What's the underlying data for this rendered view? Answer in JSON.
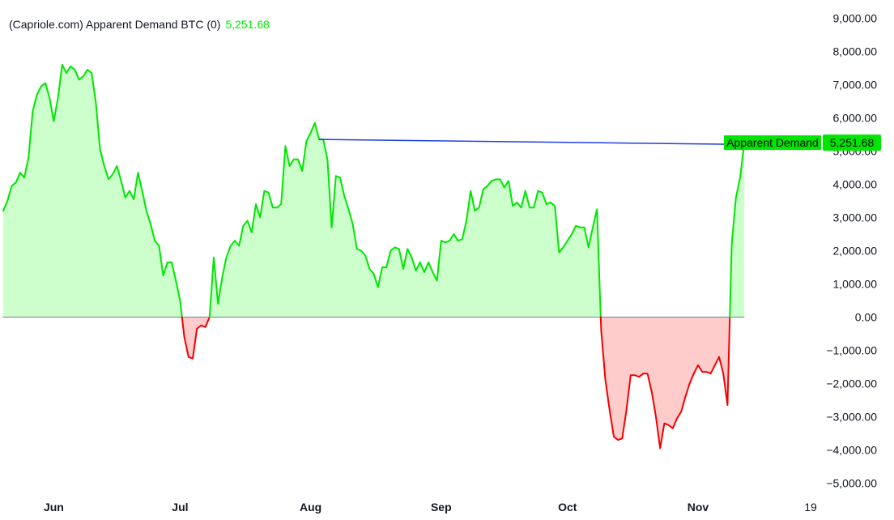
{
  "legend": {
    "title": "(Capriole.com) Apparent Demand BTC (0)",
    "value": "5,251.68"
  },
  "colors": {
    "positive_line": "#00e600",
    "positive_fill": "#ccffcc",
    "negative_line": "#f20000",
    "negative_fill": "#ffcccc",
    "zero_line": "#787b86",
    "trend_line": "#1f3fe0",
    "axis_text": "#131722",
    "label_bg": "#00e600"
  },
  "chart_data": {
    "type": "area",
    "title": "",
    "xlabel": "",
    "ylabel": "",
    "ylim": [
      -5000,
      9000
    ],
    "yticks": [
      "9,000.00",
      "8,000.00",
      "7,000.00",
      "6,000.00",
      "5,000.00",
      "4,000.00",
      "3,000.00",
      "2,000.00",
      "1,000.00",
      "0.00",
      "−1,000.00",
      "−2,000.00",
      "−3,000.00",
      "−4,000.00",
      "−5,000.00"
    ],
    "x_ticks": [
      "Jun",
      "Jul",
      "Aug",
      "Sep",
      "Oct",
      "Nov",
      "19"
    ],
    "series": [
      {
        "label_text": "Apparent Demand",
        "value_label": "5,251.68",
        "points": [
          [
            "2024-05-20",
            3200
          ],
          [
            "2024-05-21",
            3500
          ],
          [
            "2024-05-22",
            3950
          ],
          [
            "2024-05-23",
            4050
          ],
          [
            "2024-05-24",
            4350
          ],
          [
            "2024-05-25",
            4200
          ],
          [
            "2024-05-26",
            4800
          ],
          [
            "2024-05-27",
            6200
          ],
          [
            "2024-05-28",
            6700
          ],
          [
            "2024-05-29",
            6950
          ],
          [
            "2024-05-30",
            7050
          ],
          [
            "2024-05-31",
            6600
          ],
          [
            "2024-06-01",
            5900
          ],
          [
            "2024-06-02",
            6600
          ],
          [
            "2024-06-03",
            7600
          ],
          [
            "2024-06-04",
            7350
          ],
          [
            "2024-06-05",
            7550
          ],
          [
            "2024-06-06",
            7450
          ],
          [
            "2024-06-07",
            7150
          ],
          [
            "2024-06-08",
            7250
          ],
          [
            "2024-06-09",
            7450
          ],
          [
            "2024-06-10",
            7350
          ],
          [
            "2024-06-11",
            6450
          ],
          [
            "2024-06-12",
            5050
          ],
          [
            "2024-06-13",
            4550
          ],
          [
            "2024-06-14",
            4150
          ],
          [
            "2024-06-15",
            4300
          ],
          [
            "2024-06-16",
            4550
          ],
          [
            "2024-06-17",
            4100
          ],
          [
            "2024-06-18",
            3600
          ],
          [
            "2024-06-19",
            3800
          ],
          [
            "2024-06-20",
            3550
          ],
          [
            "2024-06-21",
            4350
          ],
          [
            "2024-06-22",
            3800
          ],
          [
            "2024-06-23",
            3200
          ],
          [
            "2024-06-24",
            2800
          ],
          [
            "2024-06-25",
            2300
          ],
          [
            "2024-06-26",
            2150
          ],
          [
            "2024-06-27",
            1250
          ],
          [
            "2024-06-28",
            1650
          ],
          [
            "2024-06-29",
            1650
          ],
          [
            "2024-06-30",
            1100
          ],
          [
            "2024-07-01",
            500
          ],
          [
            "2024-07-02",
            -600
          ],
          [
            "2024-07-03",
            -1200
          ],
          [
            "2024-07-04",
            -1250
          ],
          [
            "2024-07-05",
            -350
          ],
          [
            "2024-07-06",
            -250
          ],
          [
            "2024-07-07",
            -300
          ],
          [
            "2024-07-08",
            0
          ],
          [
            "2024-07-09",
            1800
          ],
          [
            "2024-07-10",
            400
          ],
          [
            "2024-07-11",
            1200
          ],
          [
            "2024-07-12",
            1800
          ],
          [
            "2024-07-13",
            2150
          ],
          [
            "2024-07-14",
            2300
          ],
          [
            "2024-07-15",
            2150
          ],
          [
            "2024-07-16",
            2750
          ],
          [
            "2024-07-17",
            2900
          ],
          [
            "2024-07-18",
            2550
          ],
          [
            "2024-07-19",
            3400
          ],
          [
            "2024-07-20",
            3000
          ],
          [
            "2024-07-21",
            3800
          ],
          [
            "2024-07-22",
            3750
          ],
          [
            "2024-07-23",
            3300
          ],
          [
            "2024-07-24",
            3300
          ],
          [
            "2024-07-25",
            3400
          ],
          [
            "2024-07-26",
            5150
          ],
          [
            "2024-07-27",
            4550
          ],
          [
            "2024-07-28",
            4750
          ],
          [
            "2024-07-29",
            4750
          ],
          [
            "2024-07-30",
            4400
          ],
          [
            "2024-07-31",
            5300
          ],
          [
            "2024-08-01",
            5550
          ],
          [
            "2024-08-02",
            5850
          ],
          [
            "2024-08-03",
            5350
          ],
          [
            "2024-08-04",
            5350
          ],
          [
            "2024-08-05",
            4750
          ],
          [
            "2024-08-06",
            2700
          ],
          [
            "2024-08-07",
            4250
          ],
          [
            "2024-08-08",
            4200
          ],
          [
            "2024-08-09",
            3650
          ],
          [
            "2024-08-10",
            3250
          ],
          [
            "2024-08-11",
            2800
          ],
          [
            "2024-08-12",
            2050
          ],
          [
            "2024-08-13",
            2000
          ],
          [
            "2024-08-14",
            1850
          ],
          [
            "2024-08-15",
            1450
          ],
          [
            "2024-08-16",
            1300
          ],
          [
            "2024-08-17",
            900
          ],
          [
            "2024-08-18",
            1500
          ],
          [
            "2024-08-19",
            1500
          ],
          [
            "2024-08-20",
            2000
          ],
          [
            "2024-08-21",
            2100
          ],
          [
            "2024-08-22",
            2050
          ],
          [
            "2024-08-23",
            1450
          ],
          [
            "2024-08-24",
            2050
          ],
          [
            "2024-08-25",
            1800
          ],
          [
            "2024-08-26",
            1400
          ],
          [
            "2024-08-27",
            1650
          ],
          [
            "2024-08-28",
            1350
          ],
          [
            "2024-08-29",
            1650
          ],
          [
            "2024-08-30",
            1350
          ],
          [
            "2024-08-31",
            1100
          ],
          [
            "2024-09-01",
            2300
          ],
          [
            "2024-09-02",
            2250
          ],
          [
            "2024-09-03",
            2300
          ],
          [
            "2024-09-04",
            2500
          ],
          [
            "2024-09-05",
            2300
          ],
          [
            "2024-09-06",
            2350
          ],
          [
            "2024-09-07",
            2900
          ],
          [
            "2024-09-08",
            3800
          ],
          [
            "2024-09-09",
            3200
          ],
          [
            "2024-09-10",
            3300
          ],
          [
            "2024-09-11",
            3850
          ],
          [
            "2024-09-12",
            3950
          ],
          [
            "2024-09-13",
            4100
          ],
          [
            "2024-09-14",
            4150
          ],
          [
            "2024-09-15",
            4150
          ],
          [
            "2024-09-16",
            3900
          ],
          [
            "2024-09-17",
            4100
          ],
          [
            "2024-09-18",
            3350
          ],
          [
            "2024-09-19",
            3450
          ],
          [
            "2024-09-20",
            3300
          ],
          [
            "2024-09-21",
            3800
          ],
          [
            "2024-09-22",
            3300
          ],
          [
            "2024-09-23",
            3300
          ],
          [
            "2024-09-24",
            3800
          ],
          [
            "2024-09-25",
            3750
          ],
          [
            "2024-09-26",
            3400
          ],
          [
            "2024-09-27",
            3450
          ],
          [
            "2024-09-28",
            3350
          ],
          [
            "2024-09-29",
            1950
          ],
          [
            "2024-09-30",
            2100
          ],
          [
            "2024-10-01",
            2300
          ],
          [
            "2024-10-02",
            2500
          ],
          [
            "2024-10-03",
            2750
          ],
          [
            "2024-10-04",
            2700
          ],
          [
            "2024-10-05",
            2700
          ],
          [
            "2024-10-06",
            2100
          ],
          [
            "2024-10-07",
            2700
          ],
          [
            "2024-10-08",
            3250
          ],
          [
            "2024-10-09",
            -400
          ],
          [
            "2024-10-10",
            -1900
          ],
          [
            "2024-10-11",
            -2800
          ],
          [
            "2024-10-12",
            -3600
          ],
          [
            "2024-10-13",
            -3700
          ],
          [
            "2024-10-14",
            -3650
          ],
          [
            "2024-10-15",
            -2800
          ],
          [
            "2024-10-16",
            -1750
          ],
          [
            "2024-10-17",
            -1750
          ],
          [
            "2024-10-18",
            -1800
          ],
          [
            "2024-10-19",
            -1700
          ],
          [
            "2024-10-20",
            -1700
          ],
          [
            "2024-10-21",
            -2250
          ],
          [
            "2024-10-22",
            -3000
          ],
          [
            "2024-10-23",
            -3950
          ],
          [
            "2024-10-24",
            -3200
          ],
          [
            "2024-10-25",
            -3250
          ],
          [
            "2024-10-26",
            -3350
          ],
          [
            "2024-10-27",
            -3050
          ],
          [
            "2024-10-28",
            -2850
          ],
          [
            "2024-10-29",
            -2400
          ],
          [
            "2024-10-30",
            -2000
          ],
          [
            "2024-10-31",
            -1700
          ],
          [
            "2024-11-01",
            -1450
          ],
          [
            "2024-11-02",
            -1650
          ],
          [
            "2024-11-03",
            -1650
          ],
          [
            "2024-11-04",
            -1700
          ],
          [
            "2024-11-05",
            -1450
          ],
          [
            "2024-11-06",
            -1200
          ],
          [
            "2024-11-07",
            -1700
          ],
          [
            "2024-11-08",
            -2650
          ],
          [
            "2024-11-09",
            2200
          ],
          [
            "2024-11-10",
            3600
          ],
          [
            "2024-11-11",
            4200
          ],
          [
            "2024-11-12",
            5252
          ]
        ]
      }
    ],
    "trend_line": {
      "points": [
        [
          "2024-08-03",
          5350
        ],
        [
          "2024-11-12",
          5200
        ]
      ]
    }
  }
}
